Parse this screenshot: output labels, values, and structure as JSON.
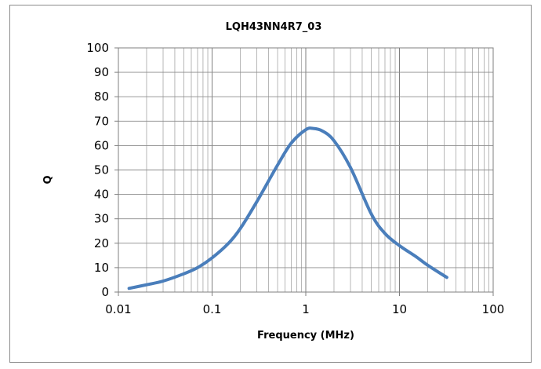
{
  "chart_data": {
    "type": "line",
    "title": "LQH43NN4R7_03",
    "xlabel": "Frequency (MHz)",
    "ylabel": "Q",
    "x_scale": "log",
    "xlim": [
      0.01,
      100
    ],
    "ylim": [
      0,
      100
    ],
    "x_ticks": [
      "0.01",
      "0.1",
      "1",
      "10",
      "100"
    ],
    "y_ticks": [
      "0",
      "10",
      "20",
      "30",
      "40",
      "50",
      "60",
      "70",
      "80",
      "90",
      "100"
    ],
    "grid": true,
    "legend": "none",
    "series": [
      {
        "color": "#4a7ebb",
        "x": [
          0.013,
          0.02,
          0.03,
          0.05,
          0.07,
          0.1,
          0.15,
          0.2,
          0.3,
          0.5,
          0.7,
          1.0,
          1.2,
          1.5,
          2.0,
          3.0,
          5.0,
          7.0,
          10.0,
          15.0,
          20.0,
          32.0
        ],
        "y": [
          1.5,
          3,
          4.5,
          7.5,
          10,
          14,
          20,
          26,
          37,
          52,
          61,
          66.5,
          67,
          66,
          62,
          51,
          32,
          24,
          19,
          14.5,
          11,
          6
        ]
      }
    ]
  }
}
